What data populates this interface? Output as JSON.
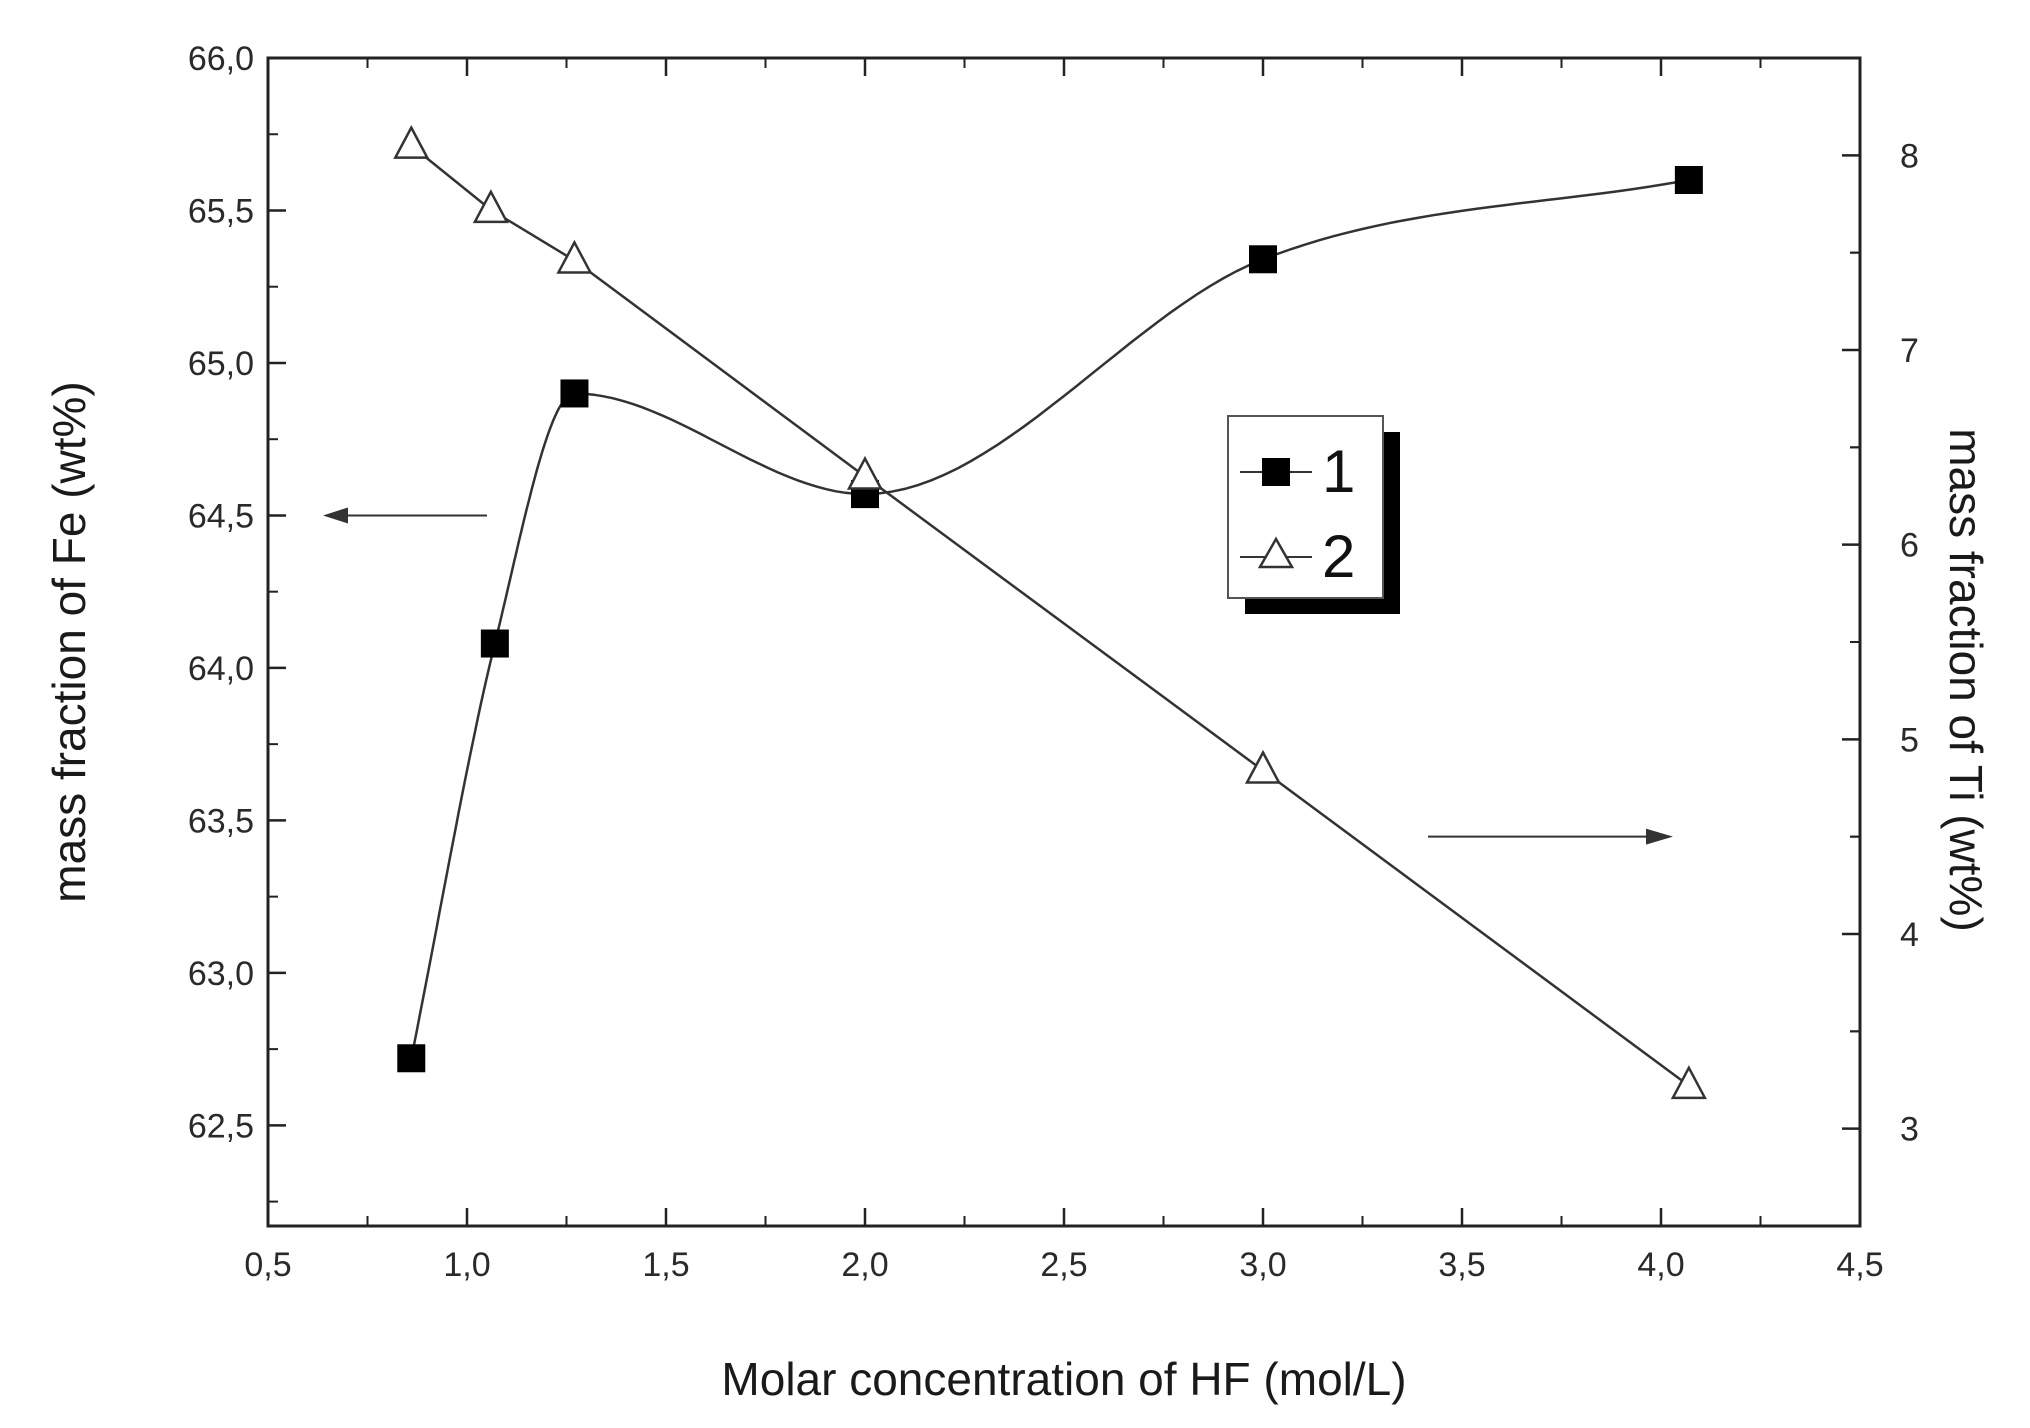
{
  "chart_data": {
    "type": "scatter",
    "xlabel": "Molar concentration of HF (mol/L)",
    "ylabel_left": "mass fraction of Fe (wt%)",
    "ylabel_right": "mass fraction of Ti (wt%)",
    "xlim": [
      0.5,
      4.5
    ],
    "ylim_left": [
      62.17,
      66.0
    ],
    "ylim_right": [
      2.5,
      8.5
    ],
    "x_ticks": [
      "0,5",
      "1,0",
      "1,5",
      "2,0",
      "2,5",
      "3,0",
      "3,5",
      "4,0",
      "4,5"
    ],
    "y_left_ticks": [
      "62,5",
      "63,0",
      "63,5",
      "64,0",
      "64,5",
      "65,0",
      "65,5",
      "66,0"
    ],
    "y_right_ticks": [
      "3",
      "4",
      "5",
      "6",
      "7",
      "8"
    ],
    "grid": false,
    "legend_position": "center-right",
    "series": [
      {
        "name": "1",
        "axis": "left",
        "marker": "filled-square",
        "fit": "smooth-curve",
        "x": [
          0.86,
          1.07,
          1.27,
          2.0,
          3.0,
          4.07
        ],
        "y": [
          62.72,
          64.08,
          64.9,
          64.57,
          65.34,
          65.6
        ]
      },
      {
        "name": "2",
        "axis": "right",
        "marker": "open-triangle",
        "fit": "line",
        "x": [
          0.86,
          1.06,
          1.27,
          2.0,
          3.0,
          4.07
        ],
        "y": [
          8.05,
          7.72,
          7.46,
          6.35,
          4.84,
          3.22
        ]
      }
    ],
    "annotations": [
      {
        "type": "arrow",
        "points_to": "left-axis",
        "note_series": "1"
      },
      {
        "type": "arrow",
        "points_to": "right-axis",
        "note_series": "2"
      }
    ]
  }
}
